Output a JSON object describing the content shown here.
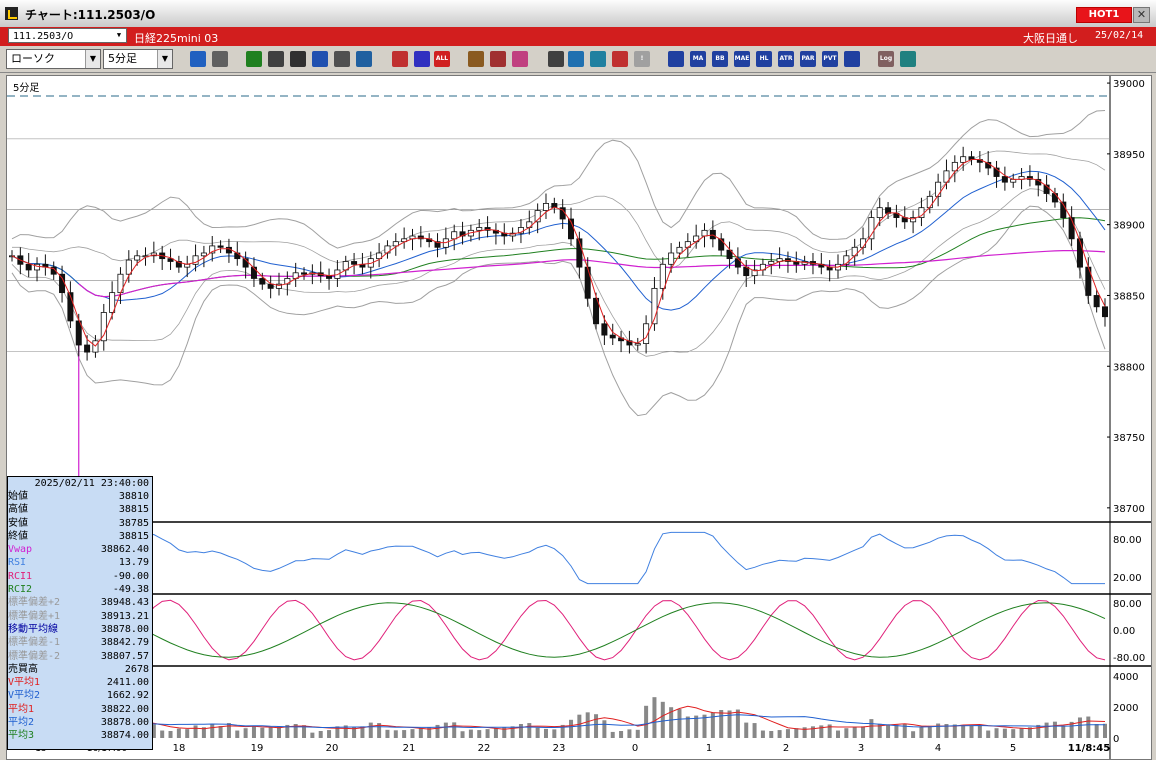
{
  "window": {
    "title": "チャート:111.2503/O",
    "hot_label": "HOT1",
    "close_glyph": "✕"
  },
  "symbol_bar": {
    "symbol": "111.2503/O",
    "name": "日経225mini 03",
    "exchange": "大阪日通し",
    "date": "25/02/14"
  },
  "toolbar": {
    "chart_type": "ローソク",
    "interval": "5分足",
    "buttons": [
      {
        "icon": "zoom-icon",
        "color": "#2060c0",
        "text": ""
      },
      {
        "icon": "crosshair-icon",
        "color": "#606060",
        "text": ""
      },
      {
        "icon": "pencil-icon",
        "color": "#208020",
        "text": ""
      },
      {
        "icon": "line-icon",
        "color": "#404040",
        "text": ""
      },
      {
        "icon": "pointer-icon",
        "color": "#303030",
        "text": ""
      },
      {
        "icon": "undo-icon",
        "color": "#2050b0",
        "text": ""
      },
      {
        "icon": "list-icon",
        "color": "#505050",
        "text": ""
      },
      {
        "icon": "trash-icon",
        "color": "#2060a0",
        "text": ""
      },
      {
        "icon": "candle-icon",
        "color": "#c03030",
        "text": ""
      },
      {
        "icon": "candle-alt-icon",
        "color": "#3030c0",
        "text": ""
      },
      {
        "icon": "all-icon",
        "color": "#d02020",
        "text": "ALL"
      },
      {
        "icon": "gear-icon",
        "color": "#8a5a20",
        "text": ""
      },
      {
        "icon": "wrench-icon",
        "color": "#a03030",
        "text": ""
      },
      {
        "icon": "palette-icon",
        "color": "#c04080",
        "text": ""
      },
      {
        "icon": "download-icon",
        "color": "#404040",
        "text": ""
      },
      {
        "icon": "search-chart-icon",
        "color": "#2070b0",
        "text": ""
      },
      {
        "icon": "bar-chart-icon",
        "color": "#2080a0",
        "text": ""
      },
      {
        "icon": "compare-icon",
        "color": "#c03030",
        "text": ""
      },
      {
        "icon": "alert-icon",
        "color": "#a0a0a0",
        "text": "!"
      },
      {
        "icon": "grid-icon",
        "color": "#2040a0",
        "text": ""
      },
      {
        "icon": "ma-icon",
        "color": "#2040a0",
        "text": "MA"
      },
      {
        "icon": "bb-icon",
        "color": "#2040a0",
        "text": "BB"
      },
      {
        "icon": "mae-icon",
        "color": "#2040a0",
        "text": "MAE"
      },
      {
        "icon": "hl-icon",
        "color": "#2040a0",
        "text": "HL"
      },
      {
        "icon": "atr-icon",
        "color": "#2040a0",
        "text": "ATR"
      },
      {
        "icon": "par-icon",
        "color": "#2040a0",
        "text": "PAR"
      },
      {
        "icon": "pvt-icon",
        "color": "#2040a0",
        "text": "PVT"
      },
      {
        "icon": "frame-icon",
        "color": "#2040a0",
        "text": ""
      },
      {
        "icon": "log-icon",
        "color": "#806060",
        "text": "Log"
      },
      {
        "icon": "export-icon",
        "color": "#208080",
        "text": ""
      }
    ]
  },
  "chart": {
    "panel_label": "5分足",
    "price_ticks": [
      "39000",
      "38950",
      "38900",
      "38850",
      "38800",
      "38750",
      "38700"
    ],
    "rsi_ticks": [
      "80.00",
      "20.00"
    ],
    "rci_ticks": [
      "80.00",
      "0.00",
      "-80.00"
    ],
    "vol_ticks": [
      "4000",
      "2000",
      "0"
    ],
    "x_labels": [
      "18",
      "19",
      "20",
      "21",
      "22",
      "23",
      "0",
      "1",
      "2",
      "3",
      "4",
      "5"
    ],
    "x_left_labels": [
      "15",
      "16/17:00"
    ],
    "x_right_label": "11/8:45",
    "colors": {
      "candle": "#111111",
      "ma_short": "#e02020",
      "ma_mid": "#2060d0",
      "ma_long": "#208020",
      "vwap": "#d020d0",
      "band": "#a0a0a0",
      "rsi": "#4080e0",
      "rci1": "#e0207a",
      "rci2": "#208020"
    }
  },
  "chart_data": {
    "type": "candlestick",
    "series": [
      {
        "name": "価格",
        "values": [
          38878,
          38872,
          38868,
          38872,
          38870,
          38865,
          38852,
          38832,
          38815,
          38810,
          38818,
          38838,
          38852,
          38865,
          38875,
          38878,
          38878,
          38880,
          38876,
          38874,
          38870,
          38872,
          38878,
          38880,
          38885,
          38884,
          38880,
          38876,
          38870,
          38862,
          38858,
          38855,
          38858,
          38862,
          38866,
          38865,
          38866,
          38864,
          38862,
          38868,
          38874,
          38872,
          38870,
          38876,
          38880,
          38885,
          38888,
          38890,
          38892,
          38890,
          38888,
          38884,
          38890,
          38895,
          38892,
          38896,
          38898,
          38896,
          38894,
          38892,
          38894,
          38898,
          38902,
          38910,
          38915,
          38912,
          38904,
          38890,
          38870,
          38848,
          38830,
          38822,
          38820,
          38818,
          38815,
          38816,
          38830,
          38855,
          38872,
          38880,
          38884,
          38888,
          38892,
          38896,
          38890,
          38882,
          38876,
          38870,
          38864,
          38868,
          38872,
          38874,
          38876,
          38874,
          38872,
          38874,
          38872,
          38870,
          38868,
          38872,
          38878,
          38884,
          38890,
          38905,
          38912,
          38908,
          38905,
          38902,
          38905,
          38912,
          38920,
          38930,
          38938,
          38944,
          38948,
          38946,
          38944,
          38940,
          38934,
          38930,
          38932,
          38934,
          38932,
          38928,
          38922,
          38916,
          38905,
          38890,
          38870,
          38850,
          38842,
          38835
        ]
      }
    ],
    "rsi_ticks": [
      80,
      20
    ],
    "rci_ticks": [
      80,
      0,
      -80
    ],
    "vol_ticks": [
      4000,
      2000,
      0
    ],
    "ylim": [
      38690,
      39005
    ]
  },
  "info_panel": {
    "timestamp": "2025/02/11 23:40:00",
    "rows": [
      {
        "label": "始値",
        "value": "38810",
        "color": "#000000"
      },
      {
        "label": "高値",
        "value": "38815",
        "color": "#000000"
      },
      {
        "label": "安値",
        "value": "38785",
        "color": "#000000"
      },
      {
        "label": "終値",
        "value": "38815",
        "color": "#000000"
      },
      {
        "label": "Vwap",
        "value": "38862.40",
        "color": "#d020d0"
      },
      {
        "label": "RSI",
        "value": "13.79",
        "color": "#4080e0"
      },
      {
        "label": "RCI1",
        "value": "-90.00",
        "color": "#e0207a"
      },
      {
        "label": "RCI2",
        "value": "-49.38",
        "color": "#208020"
      },
      {
        "label": "標準偏差+2",
        "value": "38948.43",
        "color": "#999999"
      },
      {
        "label": "標準偏差+1",
        "value": "38913.21",
        "color": "#999999"
      },
      {
        "label": "移動平均線",
        "value": "38878.00",
        "color": "#0000a0"
      },
      {
        "label": "標準偏差-1",
        "value": "38842.79",
        "color": "#999999"
      },
      {
        "label": "標準偏差-2",
        "value": "38807.57",
        "color": "#999999"
      },
      {
        "label": "売買高",
        "value": "2678",
        "color": "#000000"
      },
      {
        "label": "V平均1",
        "value": "2411.00",
        "color": "#e02020"
      },
      {
        "label": "V平均2",
        "value": "1662.92",
        "color": "#2060d0"
      },
      {
        "label": "平均1",
        "value": "38822.00",
        "color": "#e02020"
      },
      {
        "label": "平均2",
        "value": "38878.00",
        "color": "#2060d0"
      },
      {
        "label": "平均3",
        "value": "38874.00",
        "color": "#208020"
      }
    ]
  }
}
